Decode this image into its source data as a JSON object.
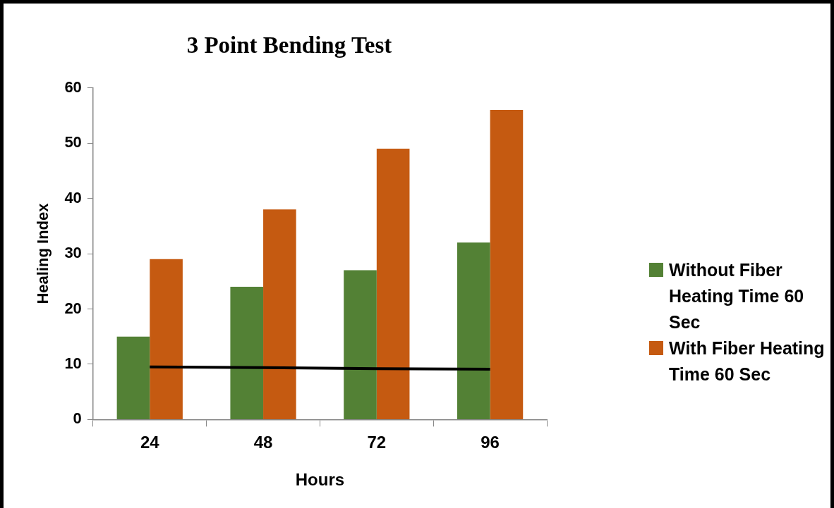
{
  "chart_data": {
    "type": "bar",
    "title": "3 Point Bending Test",
    "xlabel": "Hours",
    "ylabel": "Healing Index",
    "categories": [
      "24",
      "48",
      "72",
      "96"
    ],
    "series": [
      {
        "name": "Without Fiber Heating Time 60 Sec",
        "color": "#538135",
        "values": [
          15,
          24,
          27,
          32
        ]
      },
      {
        "name": "With Fiber Heating Time 60 Sec",
        "color": "#c55a11",
        "values": [
          29,
          38,
          49,
          56
        ]
      },
      {
        "type": "line",
        "color": "#000000",
        "values": [
          9.5,
          9.4,
          9.2,
          9.1
        ],
        "marker": "none"
      }
    ],
    "ylim": [
      0,
      60
    ],
    "yticks": [
      0,
      10,
      20,
      30,
      40,
      50,
      60
    ],
    "grid": false,
    "legend": "right"
  }
}
